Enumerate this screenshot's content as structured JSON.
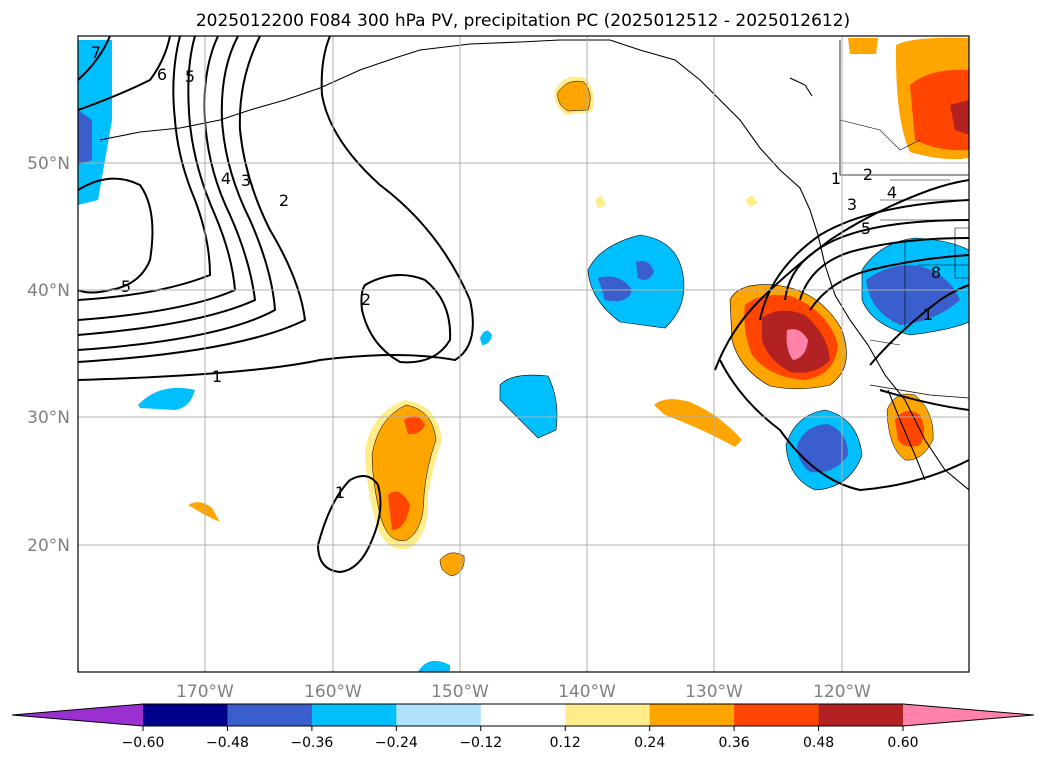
{
  "title": "2025012200 F084 300 hPa PV, precipitation PC (2025012512 - 2025012612)",
  "map": {
    "lon_range": [
      -180,
      -110
    ],
    "lat_range": [
      10,
      60
    ],
    "lat_labels": [
      "50°N",
      "40°N",
      "30°N",
      "20°N"
    ],
    "lon_labels": [
      "170°W",
      "160°W",
      "150°W",
      "140°W",
      "130°W",
      "120°W"
    ],
    "pv_contour_labels": [
      "7",
      "6",
      "5",
      "4",
      "3",
      "2",
      "5",
      "2",
      "1",
      "1",
      "1",
      "2",
      "3",
      "5",
      "4",
      "8",
      "1"
    ]
  },
  "colorbar": {
    "colors": [
      "#9a30d0",
      "#00008b",
      "#3a5fcd",
      "#00bfff",
      "#b0e2ff",
      "#ffffff",
      "#ffec8b",
      "#ffa500",
      "#ff4500",
      "#b22222",
      "#ff82ab"
    ],
    "ticks": [
      "−0.60",
      "−0.48",
      "−0.36",
      "−0.24",
      "−0.12",
      "0.12",
      "0.24",
      "0.36",
      "0.48",
      "0.60"
    ]
  }
}
